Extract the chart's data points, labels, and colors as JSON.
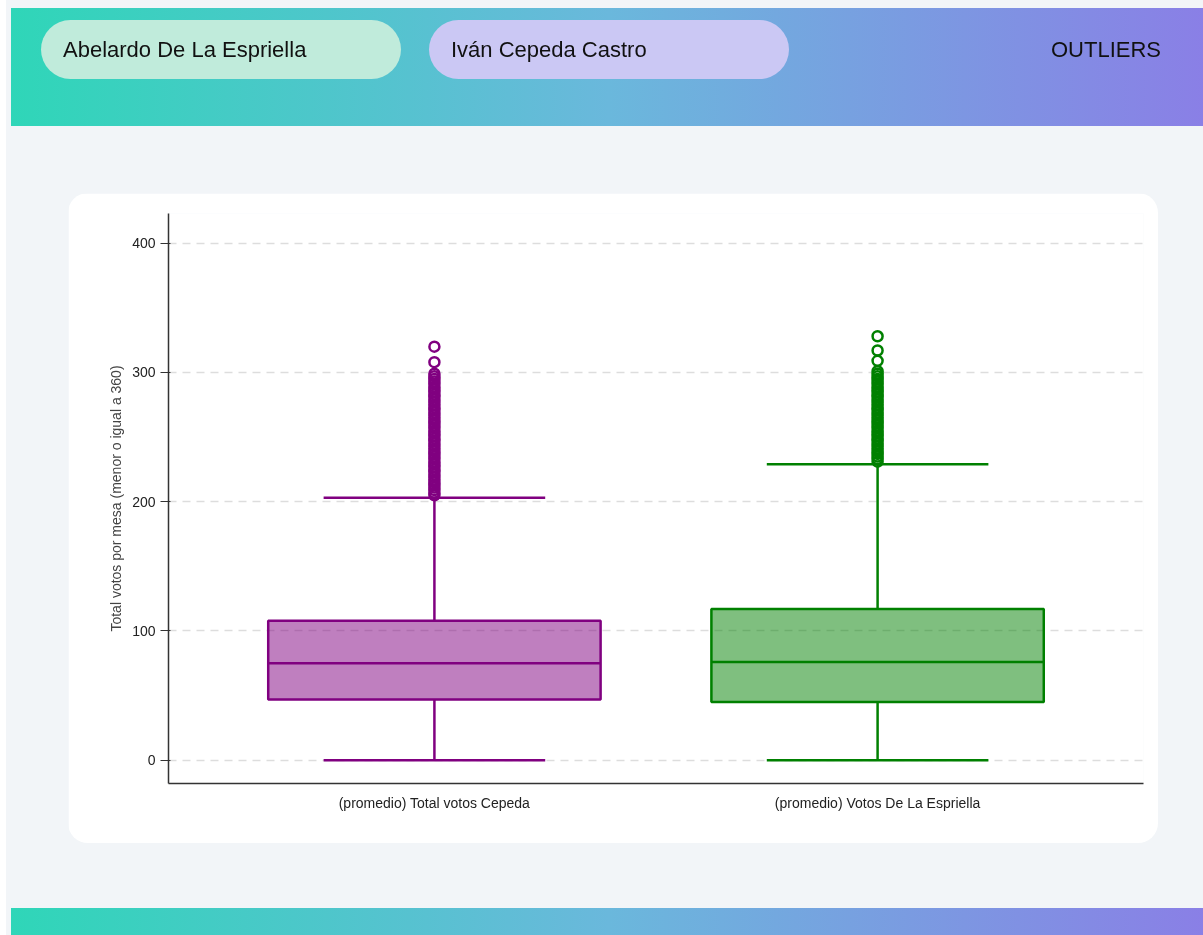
{
  "chart_data": {
    "type": "box",
    "annotations": [
      "Abelardo De La Espriella",
      "Iván Cepeda Castro",
      "OUTLIERS"
    ],
    "ylabel": "Total votos por mesa (menor o igual a 360)",
    "categories": [
      "(promedio) Total votos Cepeda",
      "(promedio) Votos De La Espriella"
    ],
    "colors": [
      "#800080",
      "#008000"
    ],
    "boxes": [
      {
        "low": 0,
        "q1": 47,
        "median": 75,
        "q3": 108,
        "high": 203,
        "outliers": [
          205,
          207,
          209,
          211,
          213,
          215,
          217,
          219,
          221,
          223,
          225,
          227,
          229,
          231,
          233,
          235,
          237,
          239,
          241,
          243,
          245,
          247,
          249,
          251,
          253,
          255,
          257,
          259,
          261,
          263,
          265,
          267,
          269,
          271,
          273,
          275,
          277,
          279,
          281,
          283,
          285,
          287,
          289,
          291,
          293,
          295,
          297,
          299,
          308,
          320
        ]
      },
      {
        "low": 0,
        "q1": 45,
        "median": 76,
        "q3": 117,
        "high": 229,
        "outliers": [
          231,
          233,
          235,
          237,
          239,
          241,
          243,
          245,
          247,
          249,
          251,
          253,
          255,
          257,
          259,
          261,
          263,
          265,
          267,
          269,
          271,
          273,
          275,
          277,
          279,
          281,
          283,
          285,
          287,
          289,
          291,
          293,
          295,
          297,
          299,
          301,
          309,
          317,
          328
        ]
      }
    ],
    "ylim": [
      -18,
      423
    ],
    "yticks": [
      0,
      100,
      200,
      300,
      400
    ],
    "grid": "y"
  }
}
